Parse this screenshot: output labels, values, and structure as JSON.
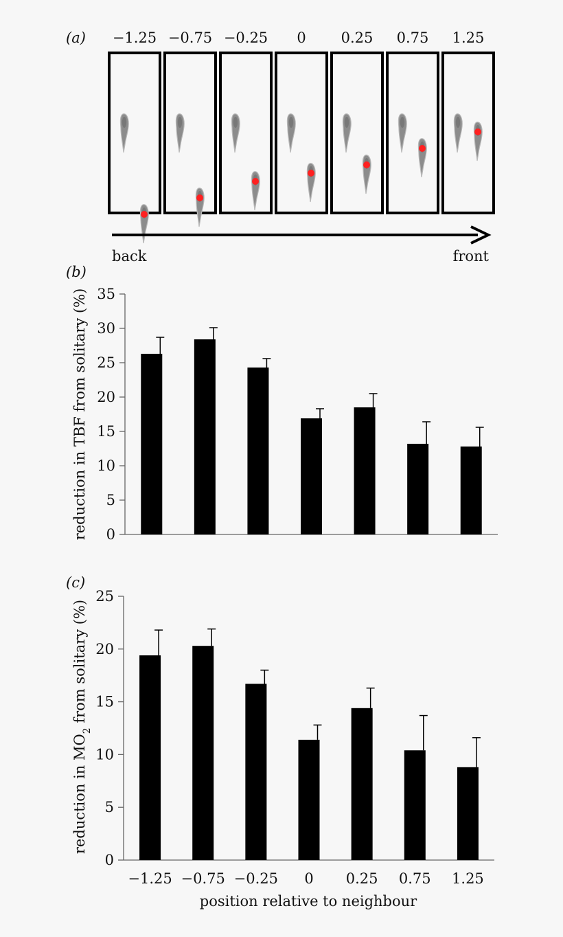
{
  "chart_data": [
    {
      "panel_label": "(a)",
      "type": "diagram",
      "positions": [
        "−1.25",
        "−0.75",
        "−0.25",
        "0",
        "0.25",
        "0.75",
        "1.25"
      ],
      "position_values": [
        -1.25,
        -0.75,
        -0.25,
        0,
        0.25,
        0.75,
        1.25
      ],
      "arrow_left_label": "back",
      "arrow_right_label": "front",
      "colors": {
        "fish": "#8c8c8c",
        "marker": "#ff2020",
        "frame": "#000000"
      }
    },
    {
      "panel_label": "(b)",
      "type": "bar",
      "categories": [
        "−1.25",
        "−0.75",
        "−0.25",
        "0",
        "0.25",
        "0.75",
        "1.25"
      ],
      "values": [
        26.3,
        28.4,
        24.3,
        16.9,
        18.5,
        13.2,
        12.8
      ],
      "errors": [
        2.4,
        1.7,
        1.3,
        1.4,
        2.0,
        3.2,
        2.8
      ],
      "ylabel": "reduction in TBF from solitary (%)",
      "ylim": [
        0,
        35
      ],
      "yticks": [
        0,
        5,
        10,
        15,
        20,
        25,
        30,
        35
      ],
      "color": "#000000"
    },
    {
      "panel_label": "(c)",
      "type": "bar",
      "categories": [
        "−1.25",
        "−0.75",
        "−0.25",
        "0",
        "0.25",
        "0.75",
        "1.25"
      ],
      "values": [
        19.4,
        20.3,
        16.7,
        11.4,
        14.4,
        10.4,
        8.8
      ],
      "errors": [
        2.4,
        1.6,
        1.3,
        1.4,
        1.9,
        3.3,
        2.8
      ],
      "ylabel_parts": {
        "before": "reduction in MO",
        "sub": "2",
        "after": " from solitary (%)"
      },
      "xlabel": "position relative to neighbour",
      "ylim": [
        0,
        25
      ],
      "yticks": [
        0,
        5,
        10,
        15,
        20,
        25
      ],
      "color": "#000000"
    }
  ]
}
